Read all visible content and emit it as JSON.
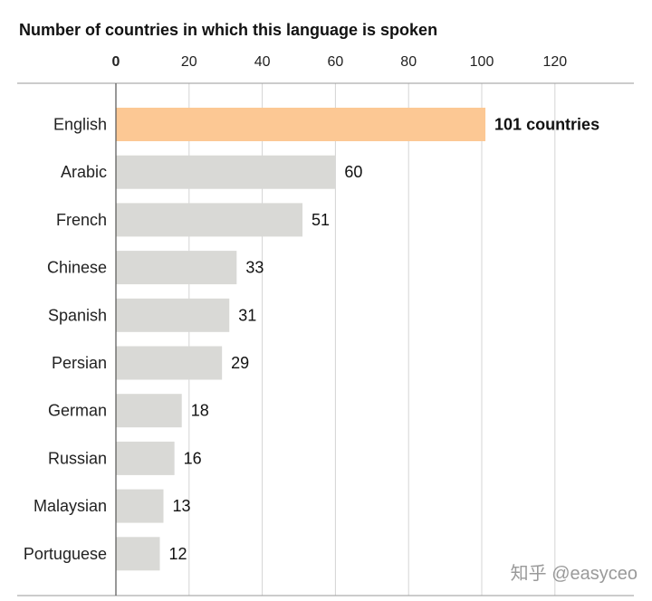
{
  "chart_data": {
    "type": "bar",
    "orientation": "horizontal",
    "title": "Number of countries in which this language is spoken",
    "categories": [
      "English",
      "Arabic",
      "French",
      "Chinese",
      "Spanish",
      "Persian",
      "German",
      "Russian",
      "Malaysian",
      "Portuguese"
    ],
    "values": [
      101,
      60,
      51,
      33,
      31,
      29,
      18,
      16,
      13,
      12
    ],
    "value_labels": [
      "101 countries",
      "60",
      "51",
      "33",
      "31",
      "29",
      "18",
      "16",
      "13",
      "12"
    ],
    "highlight_index": 0,
    "xticks": [
      0,
      20,
      40,
      60,
      80,
      100,
      120
    ],
    "xlim": [
      0,
      140
    ],
    "grid": "vertical gridlines",
    "axis_position": "top",
    "colors": {
      "bar": "#d9d9d6",
      "highlight": "#fcc894",
      "grid": "#d4d4d4",
      "axis": "#555555"
    }
  },
  "watermark": "知乎 @easyceo"
}
